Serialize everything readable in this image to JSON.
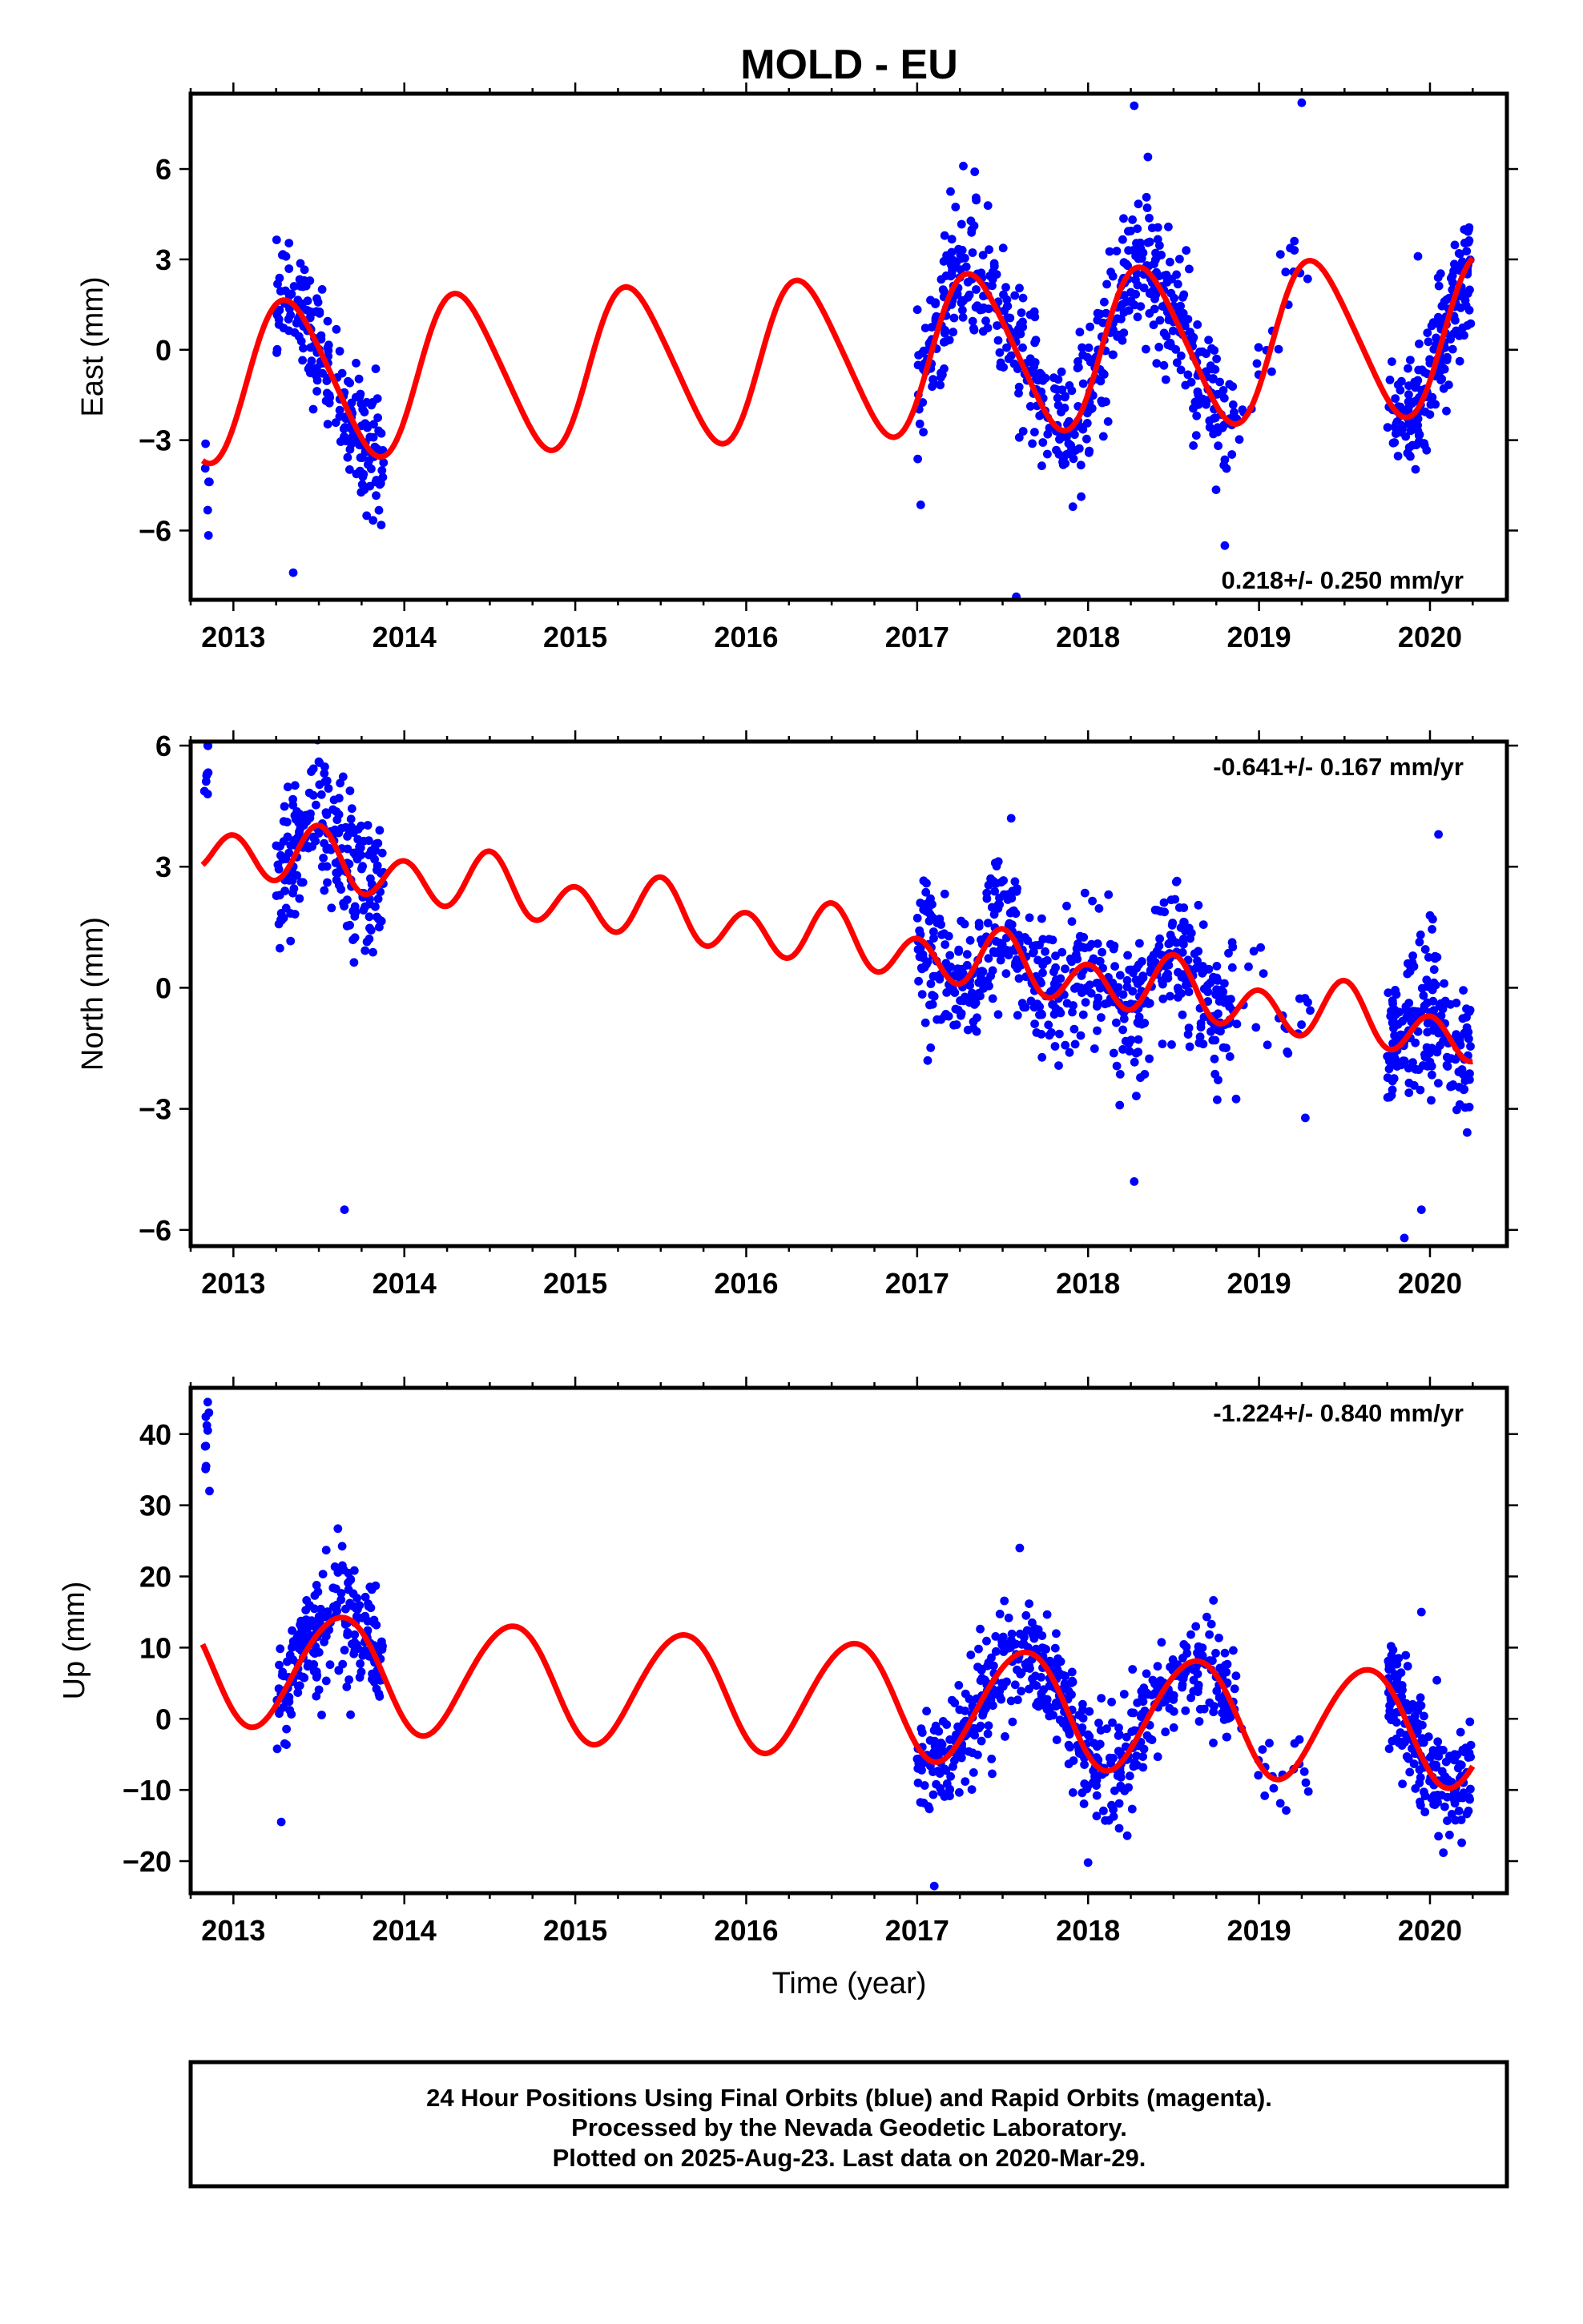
{
  "title": "MOLD - EU",
  "xlabel": "Time (year)",
  "footer": {
    "line1": "24 Hour Positions Using Final Orbits (blue) and Rapid Orbits (magenta).",
    "line2": "Processed by the Nevada Geodetic Laboratory.",
    "line3": "Plotted on 2025-Aug-23. Last data on 2020-Mar-29."
  },
  "colors": {
    "final_orbits": "#0000ff",
    "model": "#ff0000",
    "axes": "#000000"
  },
  "chart_data": [
    {
      "type": "scatter",
      "component": "East",
      "ylabel": "East (mm)",
      "rate_label": "0.218+/- 0.250 mm/yr",
      "rate_position": "bottom-right",
      "xlim": [
        2012.75,
        2020.45
      ],
      "ylim": [
        -8.3,
        8.5
      ],
      "yticks": [
        6,
        3,
        0,
        -3,
        -6
      ],
      "xticks": [
        2013,
        2014,
        2015,
        2016,
        2017,
        2018,
        2019,
        2020
      ],
      "model": {
        "rate_mm_per_yr": 0.218,
        "offset_mm": -0.3,
        "t0": 2016.5,
        "annual_amp_mm": 2.6,
        "annual_peak": 2016.33,
        "semiannual_amp_mm": 0.3,
        "semiannual_peak": 2016.2
      },
      "data_segments": [
        {
          "from": 2012.83,
          "to": 2012.86,
          "n": 6,
          "scatter_mm": 1.5
        },
        {
          "from": 2013.25,
          "to": 2013.88,
          "n": 200,
          "scatter_mm": 1.0
        },
        {
          "from": 2017.0,
          "to": 2018.85,
          "n": 560,
          "scatter_mm": 1.1
        },
        {
          "from": 2018.85,
          "to": 2019.3,
          "n": 22,
          "scatter_mm": 0.9
        },
        {
          "from": 2019.75,
          "to": 2020.24,
          "n": 200,
          "scatter_mm": 1.0
        }
      ],
      "notable_points": [
        {
          "x": 2013.35,
          "y": -7.4
        },
        {
          "x": 2017.58,
          "y": -8.2
        },
        {
          "x": 2018.27,
          "y": 8.1
        },
        {
          "x": 2019.25,
          "y": 8.2
        },
        {
          "x": 2018.8,
          "y": -6.5
        },
        {
          "x": 2019.93,
          "y": 3.1
        },
        {
          "x": 2017.27,
          "y": 6.1
        },
        {
          "x": 2018.35,
          "y": 6.4
        }
      ]
    },
    {
      "type": "scatter",
      "component": "North",
      "ylabel": "North (mm)",
      "rate_label": "-0.641+/- 0.167 mm/yr",
      "rate_position": "top-right",
      "xlim": [
        2012.75,
        2020.45
      ],
      "ylim": [
        -6.4,
        6.1
      ],
      "yticks": [
        6,
        3,
        0,
        -3,
        -6
      ],
      "xticks": [
        2013,
        2014,
        2015,
        2016,
        2017,
        2018,
        2019,
        2020
      ],
      "model": {
        "rate_mm_per_yr": -0.641,
        "offset_mm": 1.2,
        "t0": 2016.5,
        "annual_amp_mm": 0.28,
        "annual_peak": 2016.5,
        "semiannual_amp_mm": 0.62,
        "semiannual_peak": 2016.0
      },
      "data_segments": [
        {
          "from": 2012.83,
          "to": 2012.86,
          "n": 8,
          "scatter_mm": 0.5,
          "shift_mm": 2.3
        },
        {
          "from": 2013.25,
          "to": 2013.88,
          "n": 220,
          "scatter_mm": 0.95
        },
        {
          "from": 2017.0,
          "to": 2018.85,
          "n": 560,
          "scatter_mm": 0.85
        },
        {
          "from": 2018.85,
          "to": 2019.3,
          "n": 22,
          "scatter_mm": 0.9
        },
        {
          "from": 2019.75,
          "to": 2020.24,
          "n": 200,
          "scatter_mm": 1.0
        }
      ],
      "notable_points": [
        {
          "x": 2012.85,
          "y": 6.0
        },
        {
          "x": 2013.65,
          "y": -5.5
        },
        {
          "x": 2017.55,
          "y": 4.2
        },
        {
          "x": 2018.27,
          "y": -4.8
        },
        {
          "x": 2019.85,
          "y": -6.2
        },
        {
          "x": 2020.05,
          "y": 3.8
        },
        {
          "x": 2013.5,
          "y": 5.6
        },
        {
          "x": 2019.95,
          "y": -5.5
        }
      ]
    },
    {
      "type": "scatter",
      "component": "Up",
      "ylabel": "Up (mm)",
      "rate_label": "-1.224+/- 0.840 mm/yr",
      "rate_position": "top-right",
      "xlim": [
        2012.75,
        2020.45
      ],
      "ylim": [
        -24.5,
        46.5
      ],
      "yticks": [
        40,
        30,
        20,
        10,
        0,
        -10,
        -20
      ],
      "xticks": [
        2013,
        2014,
        2015,
        2016,
        2017,
        2018,
        2019,
        2020
      ],
      "model": {
        "rate_mm_per_yr": -1.224,
        "offset_mm": 3.0,
        "t0": 2016.5,
        "annual_amp_mm": 8.0,
        "annual_peak": 2016.62,
        "semiannual_amp_mm": 0.5,
        "semiannual_peak": 2016.3
      },
      "data_segments": [
        {
          "from": 2012.83,
          "to": 2012.86,
          "n": 6,
          "scatter_mm": 3.0,
          "shift_mm": 30.0
        },
        {
          "from": 2013.25,
          "to": 2013.88,
          "n": 220,
          "scatter_mm": 4.0
        },
        {
          "from": 2017.0,
          "to": 2018.85,
          "n": 560,
          "scatter_mm": 3.8
        },
        {
          "from": 2018.85,
          "to": 2019.3,
          "n": 22,
          "scatter_mm": 3.0
        },
        {
          "from": 2019.75,
          "to": 2020.24,
          "n": 200,
          "scatter_mm": 4.0
        }
      ],
      "notable_points": [
        {
          "x": 2012.85,
          "y": 44.5
        },
        {
          "x": 2012.85,
          "y": 40.5
        },
        {
          "x": 2012.84,
          "y": 35.5
        },
        {
          "x": 2012.86,
          "y": 32.0
        },
        {
          "x": 2017.6,
          "y": 24.0
        },
        {
          "x": 2017.1,
          "y": -23.5
        },
        {
          "x": 2013.28,
          "y": -14.5
        },
        {
          "x": 2019.95,
          "y": 15.0
        },
        {
          "x": 2018.0,
          "y": -20.2
        },
        {
          "x": 2020.05,
          "y": -16.5
        }
      ]
    }
  ]
}
